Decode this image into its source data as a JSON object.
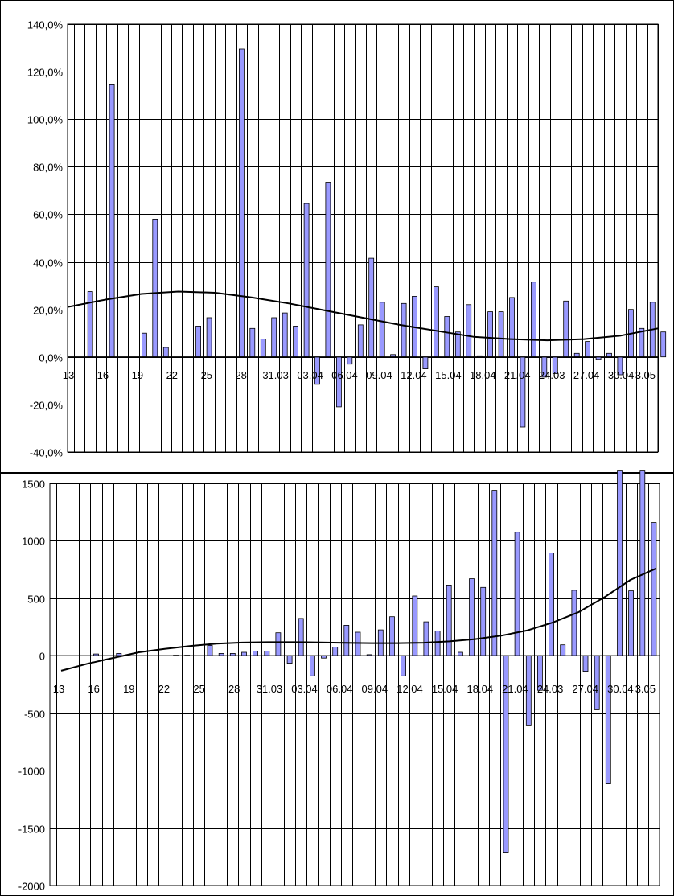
{
  "chart_data": [
    {
      "type": "bar",
      "title": "",
      "xlabel": "",
      "ylabel": "",
      "ylim": [
        -40,
        140
      ],
      "grid": true,
      "legend": "none",
      "y_tick_labels": [
        "140,0%",
        "120,0%",
        "100,0%",
        "80,0%",
        "60,0%",
        "40,0%",
        "20,0%",
        "0,0%",
        "-20,0%",
        "-40,0%"
      ],
      "x_tick_labels": [
        "13",
        "16",
        "19",
        "22",
        "25",
        "28",
        "31.03",
        "03.04",
        "06.04",
        "09.04",
        "12.04",
        "15.04",
        "18.04",
        "21.04",
        "24.03",
        "27.04",
        "30.04",
        "3.05"
      ],
      "bar_color": "#9999ff",
      "series": [
        {
          "values": [
            null,
            27.5,
            null,
            114.5,
            null,
            null,
            10,
            58,
            4,
            null,
            null,
            13,
            16.5,
            null,
            null,
            129.5,
            12,
            7.5,
            16.5,
            18.5,
            13,
            64.5,
            -11.5,
            73.5,
            -21,
            -3,
            13.5,
            41.5,
            23,
            1,
            22.5,
            25.5,
            -5,
            29.5,
            17,
            10.5,
            22,
            0.5,
            19,
            19,
            25,
            -29.5,
            31.5,
            -8.5,
            -7,
            23.5,
            1.5,
            6.5,
            -1,
            1.5,
            -7.5,
            20,
            12,
            23,
            10.5
          ]
        },
        {
          "type": "line",
          "values": [
            21,
            24,
            26.5,
            27.5,
            27,
            25,
            22.5,
            19.5,
            16.5,
            13.5,
            11,
            8.5,
            7.5,
            7,
            7.5,
            9,
            12
          ]
        }
      ]
    },
    {
      "type": "bar",
      "title": "",
      "xlabel": "",
      "ylabel": "",
      "ylim": [
        -2000,
        1500
      ],
      "grid": true,
      "legend": "none",
      "y_tick_labels": [
        "1500",
        "1000",
        "500",
        "0",
        "-500",
        "-1000",
        "-1500",
        "-2000"
      ],
      "x_tick_labels": [
        "13",
        "16",
        "19",
        "22",
        "25",
        "28",
        "31.03",
        "03.04",
        "06.04",
        "09.04",
        "12.04",
        "15.04",
        "18.04",
        "21.04",
        "24.03",
        "27.04",
        "30.04",
        "3.05"
      ],
      "bar_color": "#9999ff",
      "series": [
        {
          "values": [
            null,
            null,
            null,
            15,
            null,
            20,
            null,
            null,
            null,
            null,
            5,
            5,
            null,
            90,
            20,
            20,
            30,
            40,
            40,
            200,
            -65,
            325,
            -175,
            -20,
            75,
            265,
            205,
            10,
            225,
            340,
            -175,
            520,
            295,
            215,
            615,
            30,
            670,
            595,
            1440,
            -1710,
            1075,
            -610,
            -300,
            895,
            95,
            570,
            -135,
            -470,
            -1115,
            1615,
            565,
            1615,
            1160
          ]
        },
        {
          "type": "line",
          "values": [
            -130,
            -70,
            -20,
            30,
            60,
            85,
            105,
            115,
            118,
            118,
            116,
            112,
            110,
            110,
            113,
            125,
            145,
            175,
            220,
            290,
            380,
            510,
            660,
            760
          ]
        }
      ]
    }
  ]
}
